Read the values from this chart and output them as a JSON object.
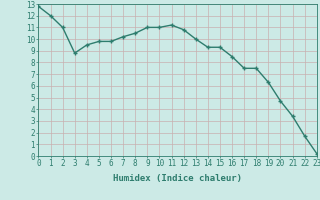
{
  "x": [
    0,
    1,
    2,
    3,
    4,
    5,
    6,
    7,
    8,
    9,
    10,
    11,
    12,
    13,
    14,
    15,
    16,
    17,
    18,
    19,
    20,
    21,
    22,
    23
  ],
  "y": [
    12.8,
    12.0,
    11.0,
    8.8,
    9.5,
    9.8,
    9.8,
    10.2,
    10.5,
    11.0,
    11.0,
    11.2,
    10.8,
    10.0,
    9.3,
    9.3,
    8.5,
    7.5,
    7.5,
    6.3,
    4.7,
    3.4,
    1.7,
    0.2
  ],
  "color": "#2e7d6e",
  "bg_color": "#cceae6",
  "grid_color": "#c8b0b0",
  "xlabel": "Humidex (Indice chaleur)",
  "ylim": [
    0,
    13
  ],
  "xlim": [
    0,
    23
  ],
  "xticks": [
    0,
    1,
    2,
    3,
    4,
    5,
    6,
    7,
    8,
    9,
    10,
    11,
    12,
    13,
    14,
    15,
    16,
    17,
    18,
    19,
    20,
    21,
    22,
    23
  ],
  "yticks": [
    0,
    1,
    2,
    3,
    4,
    5,
    6,
    7,
    8,
    9,
    10,
    11,
    12,
    13
  ],
  "tick_fontsize": 5.5,
  "xlabel_fontsize": 6.5,
  "linewidth": 1.0,
  "markersize": 3.5,
  "marker_ew": 1.0
}
